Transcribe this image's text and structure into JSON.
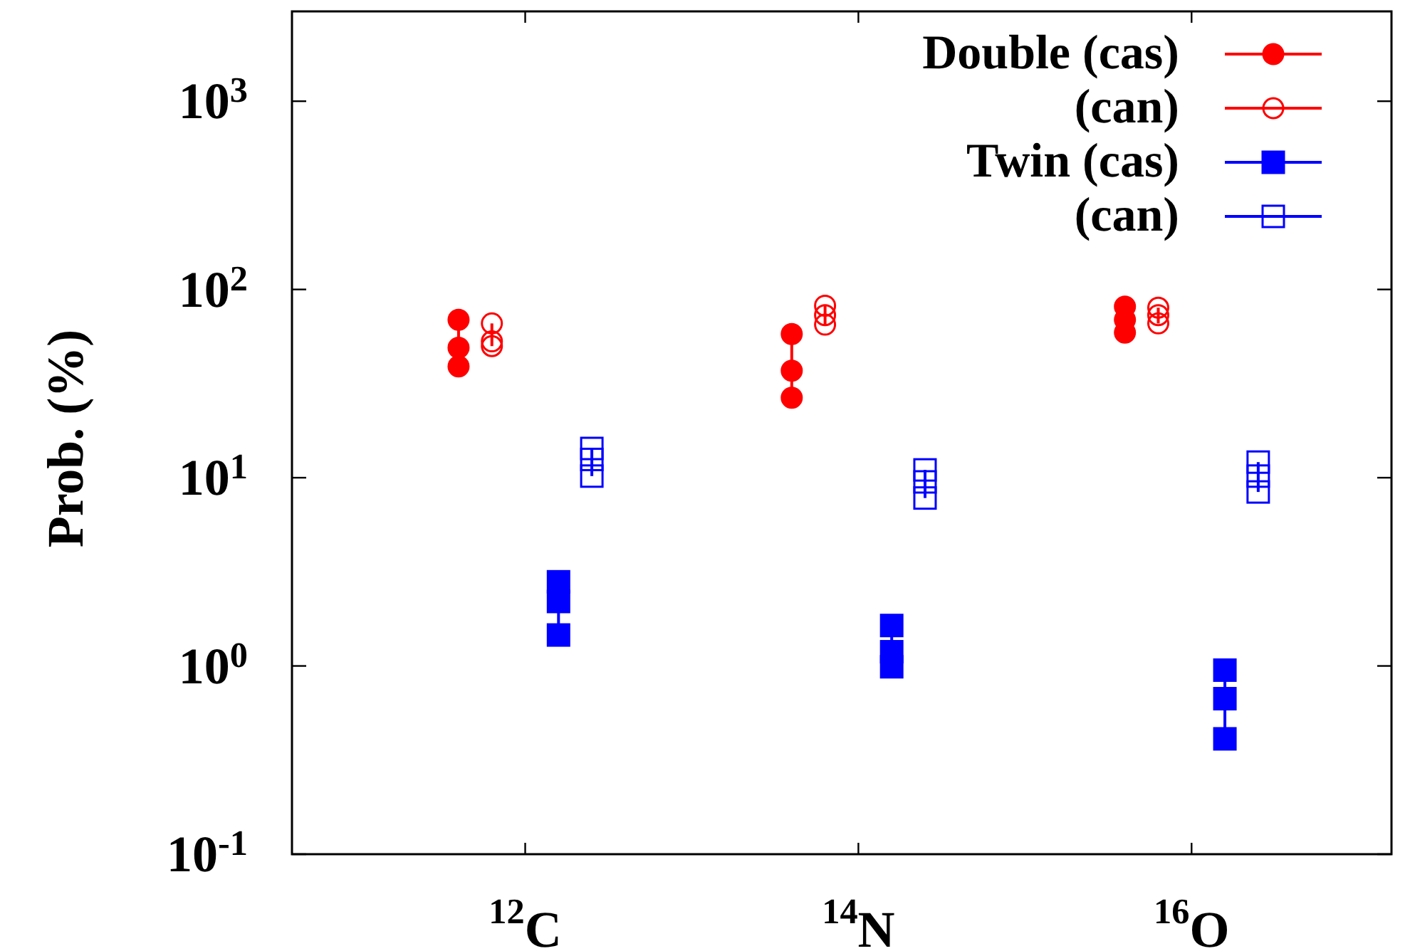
{
  "chart_data": {
    "type": "scatter",
    "ylabel": "Prob. (%)",
    "log": "y",
    "categories": [
      "$^{12}$C",
      "$^{14}$N",
      "$^{16}$O"
    ],
    "ylim": [
      0.1,
      3000
    ],
    "yticks": [
      {
        "value": 0.1,
        "label": "10$^{-1}$"
      },
      {
        "value": 1,
        "label": "10$^{0}$"
      },
      {
        "value": 10,
        "label": "10$^{1}$"
      },
      {
        "value": 100,
        "label": "10$^{2}$"
      },
      {
        "value": 1000,
        "label": "10$^{3}$"
      }
    ],
    "grid": false,
    "legend": "top right",
    "line_style": "solid",
    "series": [
      {
        "name": "Double (cas)",
        "color": "#ff0000",
        "marker": "circle",
        "x": [
          "$^{12}$C",
          "$^{12}$C",
          "$^{12}$C",
          "$^{14}$N",
          "$^{14}$N",
          "$^{14}$N",
          "$^{16}$O",
          "$^{16}$O",
          "$^{16}$O"
        ],
        "values": [
          39,
          49,
          69,
          26.6,
          37,
          58,
          59,
          69,
          81
        ]
      },
      {
        "name": "(can)",
        "color": "#ff0000",
        "marker": "circle_open",
        "x": [
          "$^{12}$C",
          "$^{12}$C",
          "$^{12}$C",
          "$^{14}$N",
          "$^{14}$N",
          "$^{14}$N",
          "$^{16}$O",
          "$^{16}$O",
          "$^{16}$O"
        ],
        "values": [
          50,
          53,
          66,
          65,
          73,
          82,
          66,
          73,
          80
        ]
      },
      {
        "name": "Twin (cas)",
        "color": "#0000ff",
        "marker": "square",
        "x": [
          "$^{12}$C",
          "$^{12}$C",
          "$^{12}$C",
          "$^{14}$N",
          "$^{14}$N",
          "$^{14}$N",
          "$^{16}$O",
          "$^{16}$O",
          "$^{16}$O"
        ],
        "values": [
          1.46,
          2.2,
          2.8,
          0.99,
          1.19,
          1.64,
          0.41,
          0.67,
          0.95
        ]
      },
      {
        "name": "(can)",
        "color": "#0000ff",
        "marker": "square_open",
        "x": [
          "$^{12}$C",
          "$^{12}$C",
          "$^{12}$C",
          "$^{14}$N",
          "$^{14}$N",
          "$^{14}$N",
          "$^{16}$O",
          "$^{16}$O",
          "$^{16}$O"
        ],
        "values": [
          10.2,
          12.5,
          14.3,
          7.8,
          9.5,
          11,
          8.4,
          10.2,
          12.1
        ]
      }
    ]
  }
}
